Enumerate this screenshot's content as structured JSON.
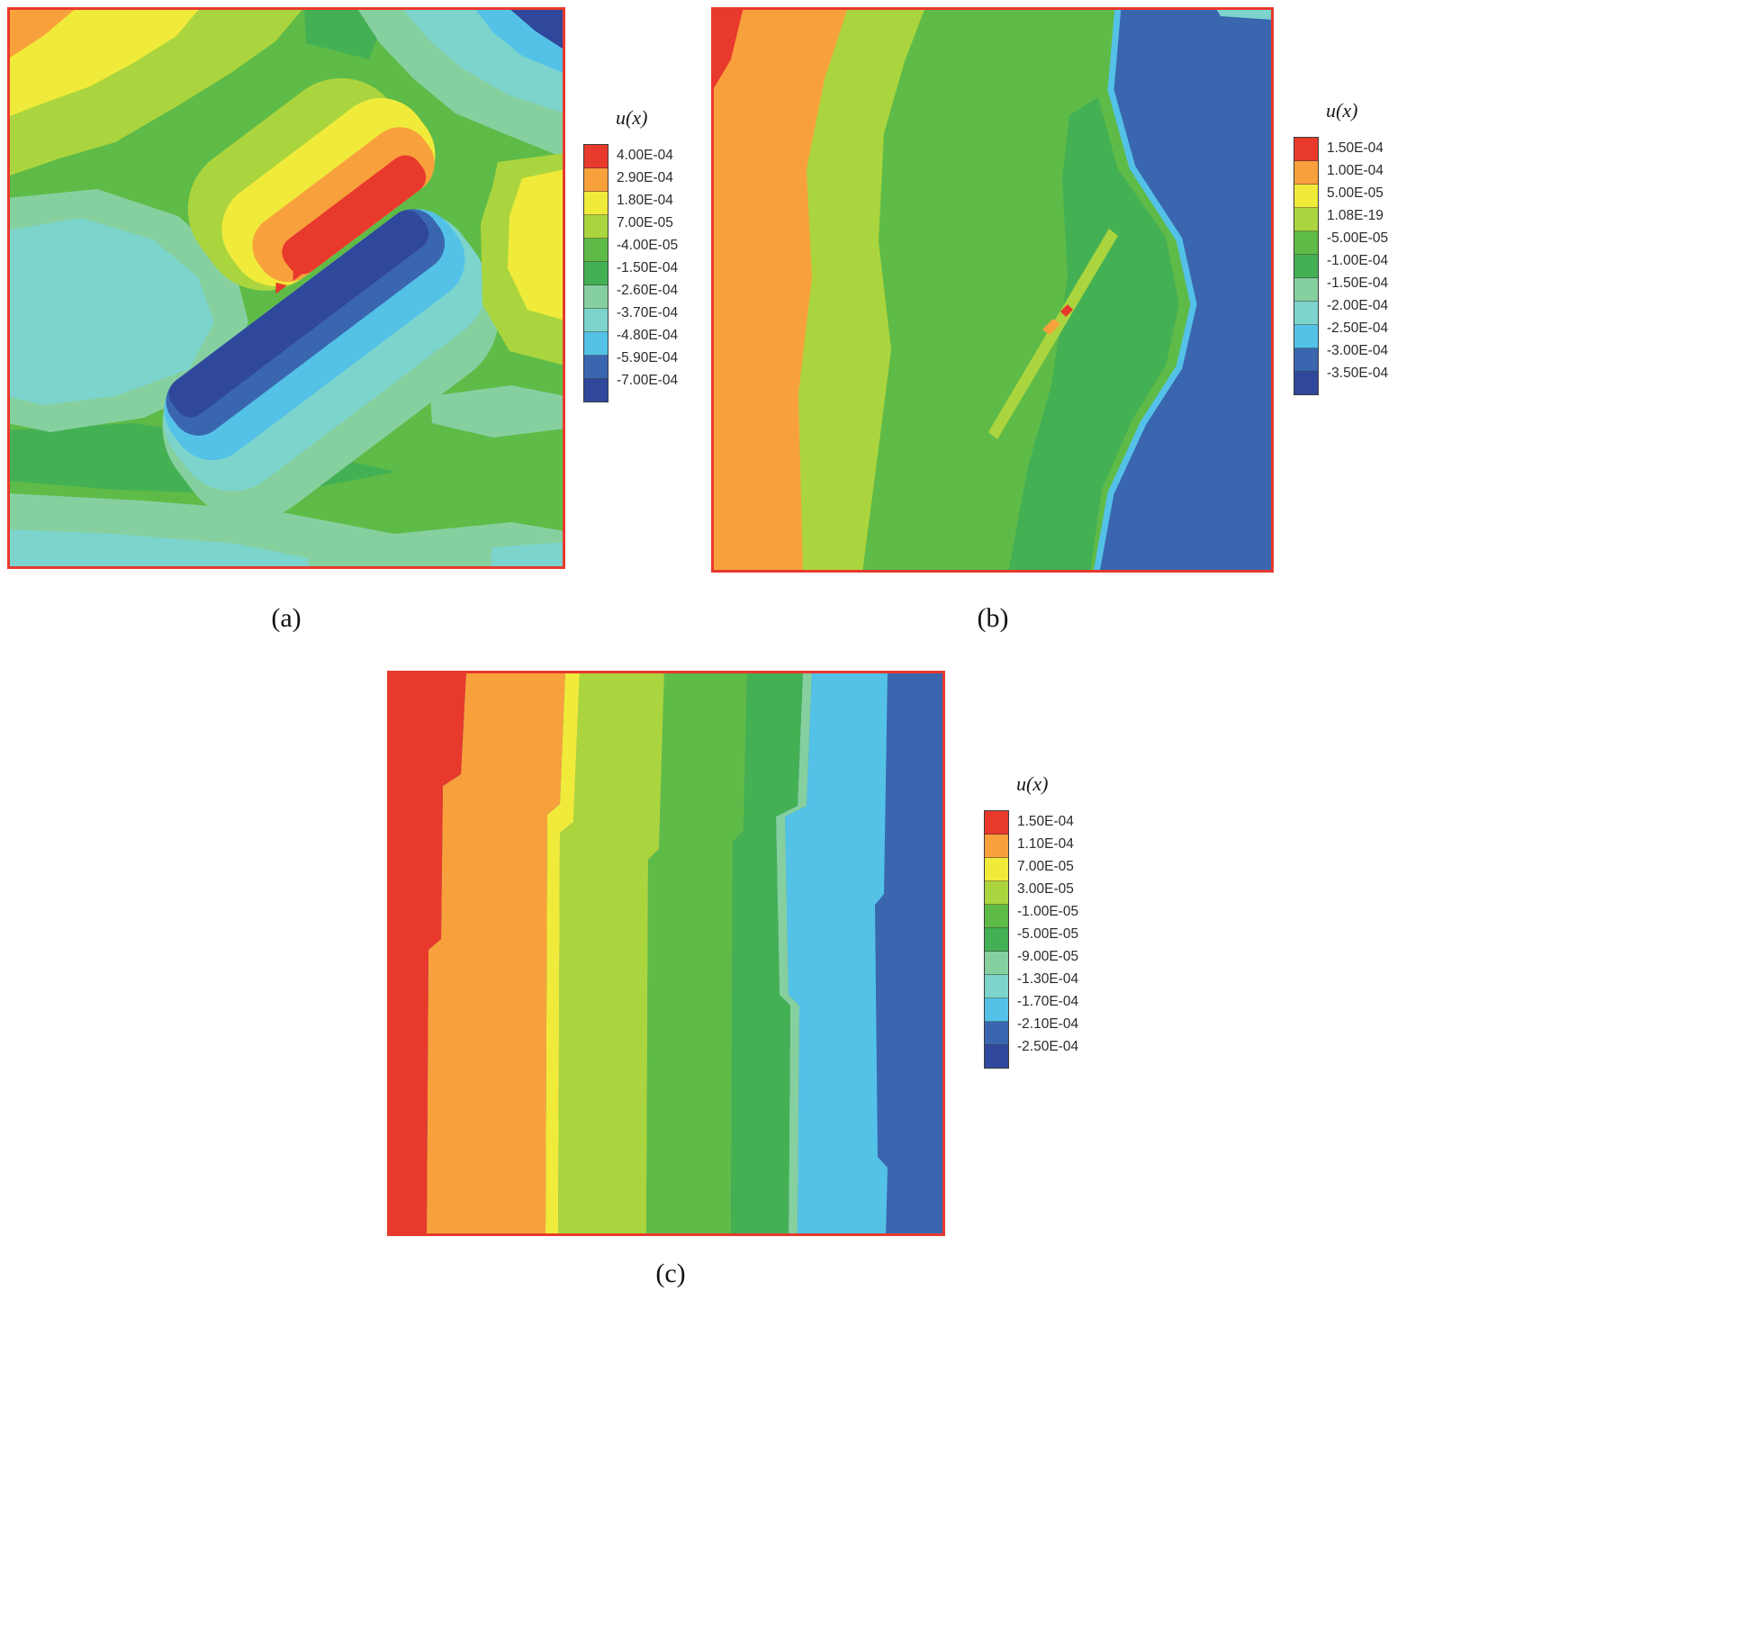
{
  "figure": {
    "background": "#ffffff"
  },
  "chart_data": [
    {
      "type": "heatmap",
      "panel": "a",
      "caption": "(a)",
      "legend_title": "u(x)",
      "legend_labels": [
        "4.00E-04",
        "2.90E-04",
        "1.80E-04",
        "7.00E-05",
        "-4.00E-05",
        "-1.50E-04",
        "-2.60E-04",
        "-3.70E-04",
        "-4.80E-04",
        "-5.90E-04",
        "-7.00E-04"
      ],
      "legend_colors": [
        "#e8392d",
        "#f8a13c",
        "#f0eb3a",
        "#abd53e",
        "#5fbb47",
        "#44b054",
        "#86d0a0",
        "#7cd4cd",
        "#54c2e7",
        "#3a66b0",
        "#30489c"
      ],
      "plot_border_color": "#e8392d",
      "value_range": [
        "-7.00E-04",
        "4.00E-04"
      ],
      "description": "Contour map of u(x): inclined crack with positive (red/orange) lobe above and negative (navy/blue) lobe below, cyan pool at left, yellow region top-left, dark blue corner top-right."
    },
    {
      "type": "heatmap",
      "panel": "b",
      "caption": "(b)",
      "legend_title": "u(x)",
      "legend_labels": [
        "1.50E-04",
        "1.00E-04",
        "5.00E-05",
        "1.08E-19",
        "-5.00E-05",
        "-1.00E-04",
        "-1.50E-04",
        "-2.00E-04",
        "-2.50E-04",
        "-3.00E-04",
        "-3.50E-04"
      ],
      "legend_colors": [
        "#e8392d",
        "#f8a13c",
        "#f0eb3a",
        "#abd53e",
        "#5fbb47",
        "#44b054",
        "#86d0a0",
        "#7cd4cd",
        "#54c2e7",
        "#3a66b0",
        "#30489c"
      ],
      "plot_border_color": "#e8392d",
      "value_range": [
        "-3.50E-04",
        "1.50E-04"
      ],
      "description": "Contour map of u(x): vertical bands from orange (left, red sliver in top-left corner) through green (center, faint inclined crack sliver) to dark blue (right) separated by a thin cyan contour."
    },
    {
      "type": "heatmap",
      "panel": "c",
      "caption": "(c)",
      "legend_title": "u(x)",
      "legend_labels": [
        "1.50E-04",
        "1.10E-04",
        "7.00E-05",
        "3.00E-05",
        "-1.00E-05",
        "-5.00E-05",
        "-9.00E-05",
        "-1.30E-04",
        "-1.70E-04",
        "-2.10E-04",
        "-2.50E-04"
      ],
      "legend_colors": [
        "#e8392d",
        "#f8a13c",
        "#f0eb3a",
        "#abd53e",
        "#5fbb47",
        "#44b054",
        "#86d0a0",
        "#7cd4cd",
        "#54c2e7",
        "#3a66b0",
        "#30489c"
      ],
      "plot_border_color": "#e8392d",
      "value_range": [
        "-2.50E-04",
        "1.50E-04"
      ],
      "bands_left_to_right": [
        "red",
        "orange",
        "yellow",
        "yellow-green",
        "green",
        "green",
        "teal",
        "sky-blue",
        "dark-blue"
      ],
      "description": "Contour map of u(x): nearly vertical stepped bands grading from red at the left edge to dark blue at the right edge."
    }
  ]
}
